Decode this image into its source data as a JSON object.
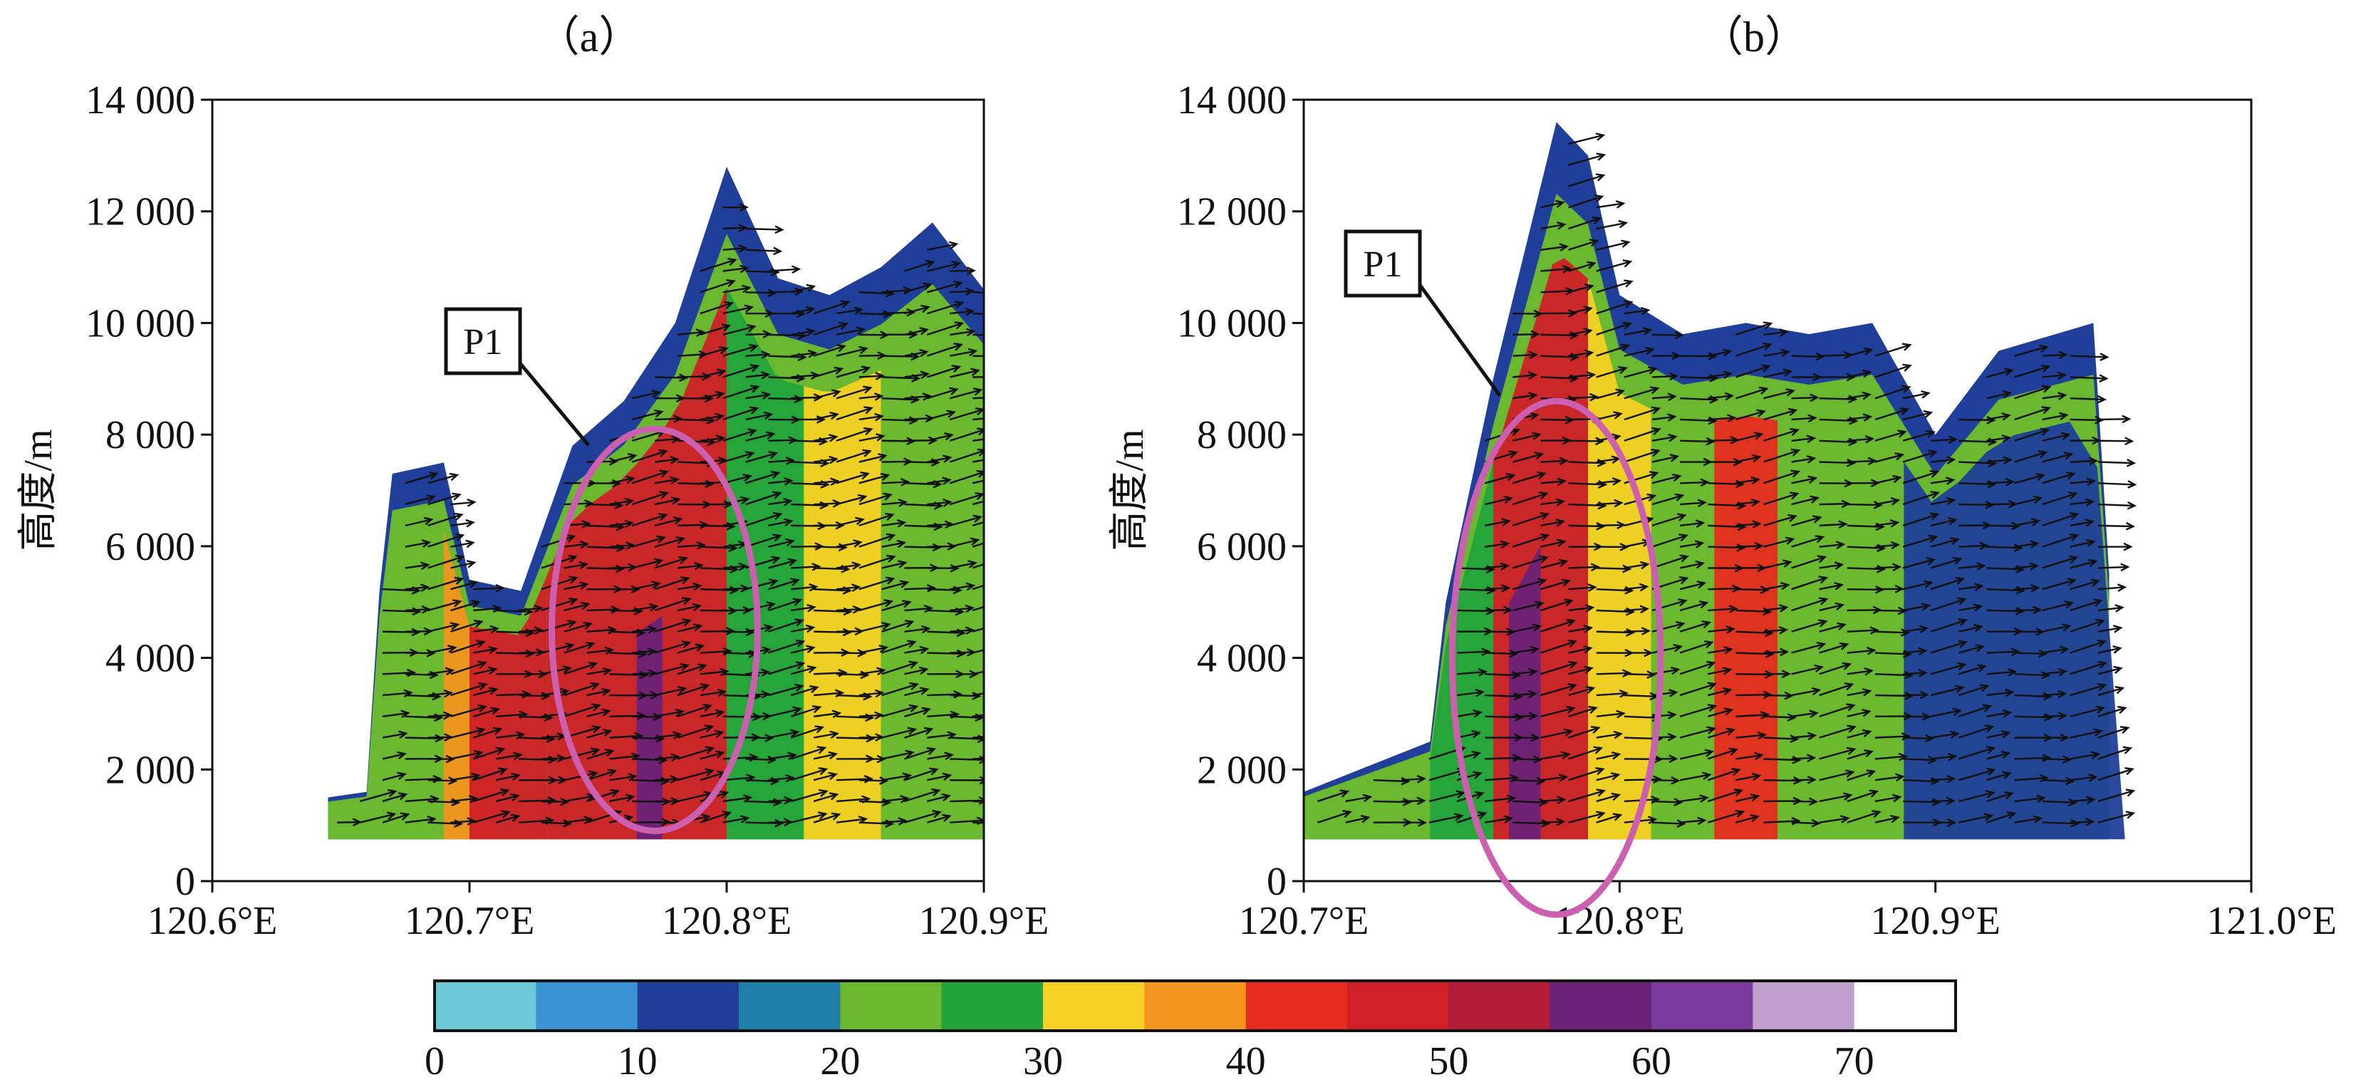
{
  "chart_data": [
    {
      "type": "heatmap",
      "panel_label": "（a）",
      "title": "",
      "xlabel": "",
      "ylabel": "高度/m",
      "xlim": [
        120.6,
        120.9
      ],
      "ylim": [
        0,
        14000
      ],
      "x_ticks": [
        120.6,
        120.7,
        120.8,
        120.9
      ],
      "x_tick_labels": [
        "120.6°E",
        "120.7°E",
        "120.8°E",
        "120.9°E"
      ],
      "y_ticks": [
        0,
        2000,
        4000,
        6000,
        8000,
        10000,
        12000,
        14000
      ],
      "y_tick_labels": [
        "0",
        "2 000",
        "4 000",
        "6 000",
        "8 000",
        "10 000",
        "12 000",
        "14 000"
      ],
      "annotation": {
        "text": "P1",
        "ellipse_center": [
          120.772,
          4500
        ],
        "ellipse_half_width_deg": 0.04,
        "ellipse_half_height_m": 3600
      },
      "field_bottom_m": 750,
      "echo_top_profile": [
        [
          120.645,
          1500
        ],
        [
          120.66,
          1600
        ],
        [
          120.665,
          5200
        ],
        [
          120.67,
          7300
        ],
        [
          120.69,
          7500
        ],
        [
          120.7,
          5400
        ],
        [
          120.72,
          5200
        ],
        [
          120.74,
          7800
        ],
        [
          120.76,
          8600
        ],
        [
          120.78,
          10000
        ],
        [
          120.8,
          12800
        ],
        [
          120.82,
          10800
        ],
        [
          120.84,
          10500
        ],
        [
          120.86,
          11000
        ],
        [
          120.88,
          11800
        ],
        [
          120.9,
          10600
        ]
      ],
      "reflectivity_bands": [
        {
          "x": [
            120.67,
            120.69
          ],
          "dbz": 22
        },
        {
          "x": [
            120.69,
            120.71
          ],
          "dbz": 36
        },
        {
          "x": [
            120.7,
            120.73
          ],
          "dbz": 46
        },
        {
          "x": [
            120.73,
            120.8
          ],
          "dbz": 48
        },
        {
          "x": [
            120.765,
            120.775
          ],
          "dbz": 58
        },
        {
          "x": [
            120.8,
            120.83
          ],
          "dbz": 28
        },
        {
          "x": [
            120.83,
            120.86
          ],
          "dbz": 34
        },
        {
          "x": [
            120.86,
            120.9
          ],
          "dbz": 22
        }
      ]
    },
    {
      "type": "heatmap",
      "panel_label": "（b）",
      "title": "",
      "xlabel": "",
      "ylabel": "高度/m",
      "xlim": [
        120.7,
        121.0
      ],
      "ylim": [
        0,
        14000
      ],
      "x_ticks": [
        120.7,
        120.8,
        120.9,
        121.0
      ],
      "x_tick_labels": [
        "120.7°E",
        "120.8°E",
        "120.9°E",
        "121.0°E"
      ],
      "y_ticks": [
        0,
        2000,
        4000,
        6000,
        8000,
        10000,
        12000,
        14000
      ],
      "y_tick_labels": [
        "0",
        "2 000",
        "4 000",
        "6 000",
        "8 000",
        "10 000",
        "12 000",
        "14 000"
      ],
      "annotation": {
        "text": "P1",
        "ellipse_center": [
          120.78,
          4000
        ],
        "ellipse_half_width_deg": 0.033,
        "ellipse_half_height_m": 4600
      },
      "field_bottom_m": 750,
      "echo_top_profile": [
        [
          120.7,
          1600
        ],
        [
          120.74,
          2500
        ],
        [
          120.745,
          5000
        ],
        [
          120.76,
          9000
        ],
        [
          120.78,
          13600
        ],
        [
          120.79,
          13000
        ],
        [
          120.8,
          10500
        ],
        [
          120.82,
          9800
        ],
        [
          120.84,
          10000
        ],
        [
          120.86,
          9800
        ],
        [
          120.88,
          10000
        ],
        [
          120.9,
          8000
        ],
        [
          120.92,
          9500
        ],
        [
          120.95,
          10000
        ],
        [
          120.955,
          5500
        ]
      ],
      "reflectivity_bands": [
        {
          "x": [
            120.74,
            120.76
          ],
          "dbz": 26
        },
        {
          "x": [
            120.76,
            120.79
          ],
          "dbz": 48
        },
        {
          "x": [
            120.765,
            120.775
          ],
          "dbz": 58
        },
        {
          "x": [
            120.79,
            120.81
          ],
          "dbz": 32
        },
        {
          "x": [
            120.81,
            120.83
          ],
          "dbz": 22
        },
        {
          "x": [
            120.83,
            120.85
          ],
          "dbz": 44
        },
        {
          "x": [
            120.85,
            120.89
          ],
          "dbz": 22
        },
        {
          "x": [
            120.89,
            120.96
          ],
          "dbz": 14
        }
      ]
    }
  ],
  "colorbar": {
    "tick_values": [
      0,
      10,
      20,
      30,
      40,
      50,
      60,
      70
    ],
    "tick_labels": [
      "0",
      "10",
      "20",
      "30",
      "40",
      "50",
      "60",
      "70"
    ],
    "range": [
      0,
      75
    ],
    "band_step": 5,
    "colors": [
      "#6dc8d6",
      "#3b93d3",
      "#1f3f9a",
      "#1f7fa8",
      "#6ab82f",
      "#23a33c",
      "#f4d123",
      "#f2941d",
      "#e62b20",
      "#cf1f28",
      "#b21d3a",
      "#6a2178",
      "#7a3a9e",
      "#bfa0cc",
      "#ffffff"
    ]
  },
  "colors": {
    "ellipse": "#cc5fb0",
    "vector": "#111111",
    "axis": "#111111"
  }
}
